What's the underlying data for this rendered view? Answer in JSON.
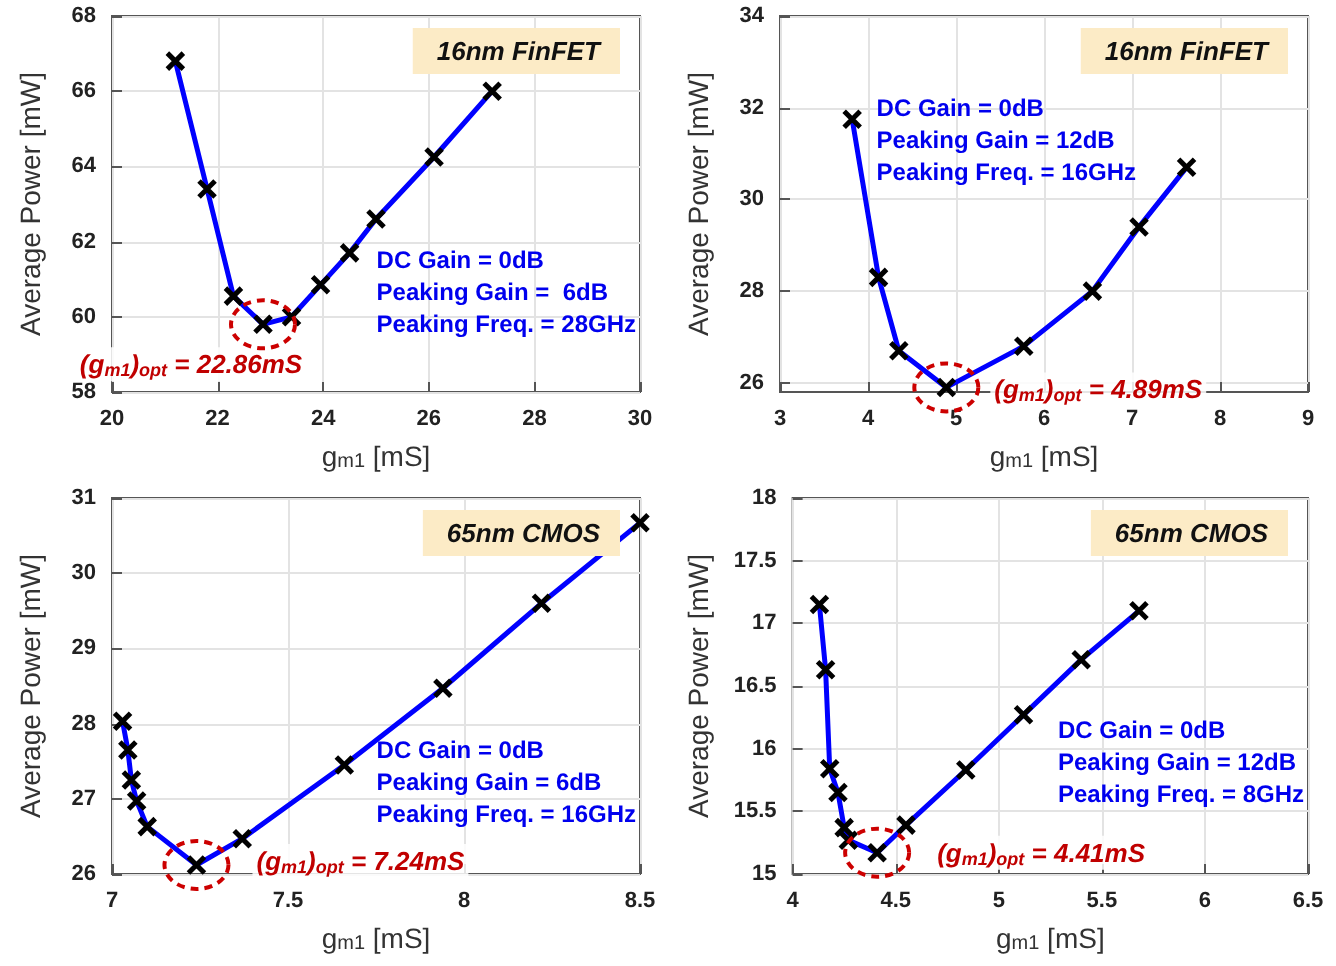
{
  "chart_data": [
    {
      "type": "line",
      "xlabel": "g$_{m1}$ [mS]",
      "ylabel": "Average Power [mW]",
      "color": "#0000ff",
      "marker": "cross",
      "grid": true,
      "x": [
        21.2,
        21.8,
        22.3,
        22.86,
        23.4,
        23.95,
        24.5,
        25.0,
        26.1,
        27.2
      ],
      "values": [
        66.8,
        63.4,
        60.55,
        59.8,
        60.0,
        60.85,
        61.7,
        62.6,
        64.25,
        66.0
      ],
      "xlim": [
        20,
        30
      ],
      "xticks": [
        20,
        22,
        24,
        26,
        28,
        30
      ],
      "ylim": [
        58,
        68
      ],
      "yticks": [
        58,
        60,
        62,
        64,
        66,
        68
      ],
      "annotations": [
        "16nm FinFET",
        "DC Gain = 0dB\nPeaking Gain =  6dB\nPeaking Freq. = 28GHz",
        {
          "text": "(g$_{m1}$)$_{opt}$ = 22.86mS",
          "x": 22.86,
          "y": 59.8
        }
      ]
    },
    {
      "type": "line",
      "xlabel": "g$_{m1}$ [mS]",
      "ylabel": "Average Power [mW]",
      "color": "#0000ff",
      "marker": "cross",
      "grid": true,
      "x": [
        3.82,
        4.12,
        4.35,
        4.89,
        5.77,
        6.55,
        7.08,
        7.62
      ],
      "values": [
        31.75,
        28.3,
        26.7,
        25.9,
        26.8,
        28.0,
        29.4,
        30.7
      ],
      "xlim": [
        3,
        9
      ],
      "xticks": [
        3,
        4,
        5,
        6,
        7,
        8,
        9
      ],
      "ylim": [
        25.8,
        34
      ],
      "yticks": [
        26,
        28,
        30,
        32,
        34
      ],
      "annotations": [
        "16nm FinFET",
        "DC Gain = 0dB\nPeaking Gain = 12dB\nPeaking Freq. = 16GHz",
        {
          "text": "(g$_{m1}$)$_{opt}$ = 4.89mS",
          "x": 4.89,
          "y": 25.9
        }
      ]
    },
    {
      "type": "line",
      "xlabel": "g$_{m1}$ [mS]",
      "ylabel": "Average Power [mW]",
      "color": "#0000ff",
      "marker": "cross",
      "grid": true,
      "x": [
        7.03,
        7.045,
        7.055,
        7.07,
        7.1,
        7.24,
        7.37,
        7.66,
        7.94,
        8.22,
        8.5
      ],
      "values": [
        28.03,
        27.65,
        27.25,
        26.97,
        26.63,
        26.12,
        26.47,
        27.45,
        28.47,
        29.6,
        30.67
      ],
      "xlim": [
        7,
        8.5
      ],
      "xticks": [
        7,
        7.5,
        8,
        8.5
      ],
      "ylim": [
        26,
        31
      ],
      "yticks": [
        26,
        27,
        28,
        29,
        30,
        31
      ],
      "annotations": [
        "65nm CMOS",
        "DC Gain = 0dB\nPeaking Gain = 6dB\nPeaking Freq. = 16GHz",
        {
          "text": "(g$_{m1}$)$_{opt}$ = 7.24mS",
          "x": 7.24,
          "y": 26.12
        }
      ]
    },
    {
      "type": "line",
      "xlabel": "g$_{m1}$ [mS]",
      "ylabel": "Average Power [mW]",
      "color": "#0000ff",
      "marker": "cross",
      "grid": true,
      "x": [
        4.13,
        4.16,
        4.18,
        4.22,
        4.25,
        4.27,
        4.41,
        4.55,
        4.84,
        5.12,
        5.4,
        5.68
      ],
      "values": [
        17.15,
        16.63,
        15.84,
        15.65,
        15.37,
        15.27,
        15.17,
        15.39,
        15.83,
        16.27,
        16.71,
        17.1
      ],
      "xlim": [
        4,
        6.5
      ],
      "xticks": [
        4,
        4.5,
        5,
        5.5,
        6,
        6.5
      ],
      "ylim": [
        15,
        18
      ],
      "yticks": [
        15,
        15.5,
        16,
        16.5,
        17,
        17.5,
        18
      ],
      "annotations": [
        "65nm CMOS",
        "DC Gain = 0dB\nPeaking Gain = 12dB\nPeaking Freq. = 8GHz",
        {
          "text": "(g$_{m1}$)$_{opt}$ = 4.41mS",
          "x": 4.41,
          "y": 15.17
        }
      ]
    }
  ]
}
